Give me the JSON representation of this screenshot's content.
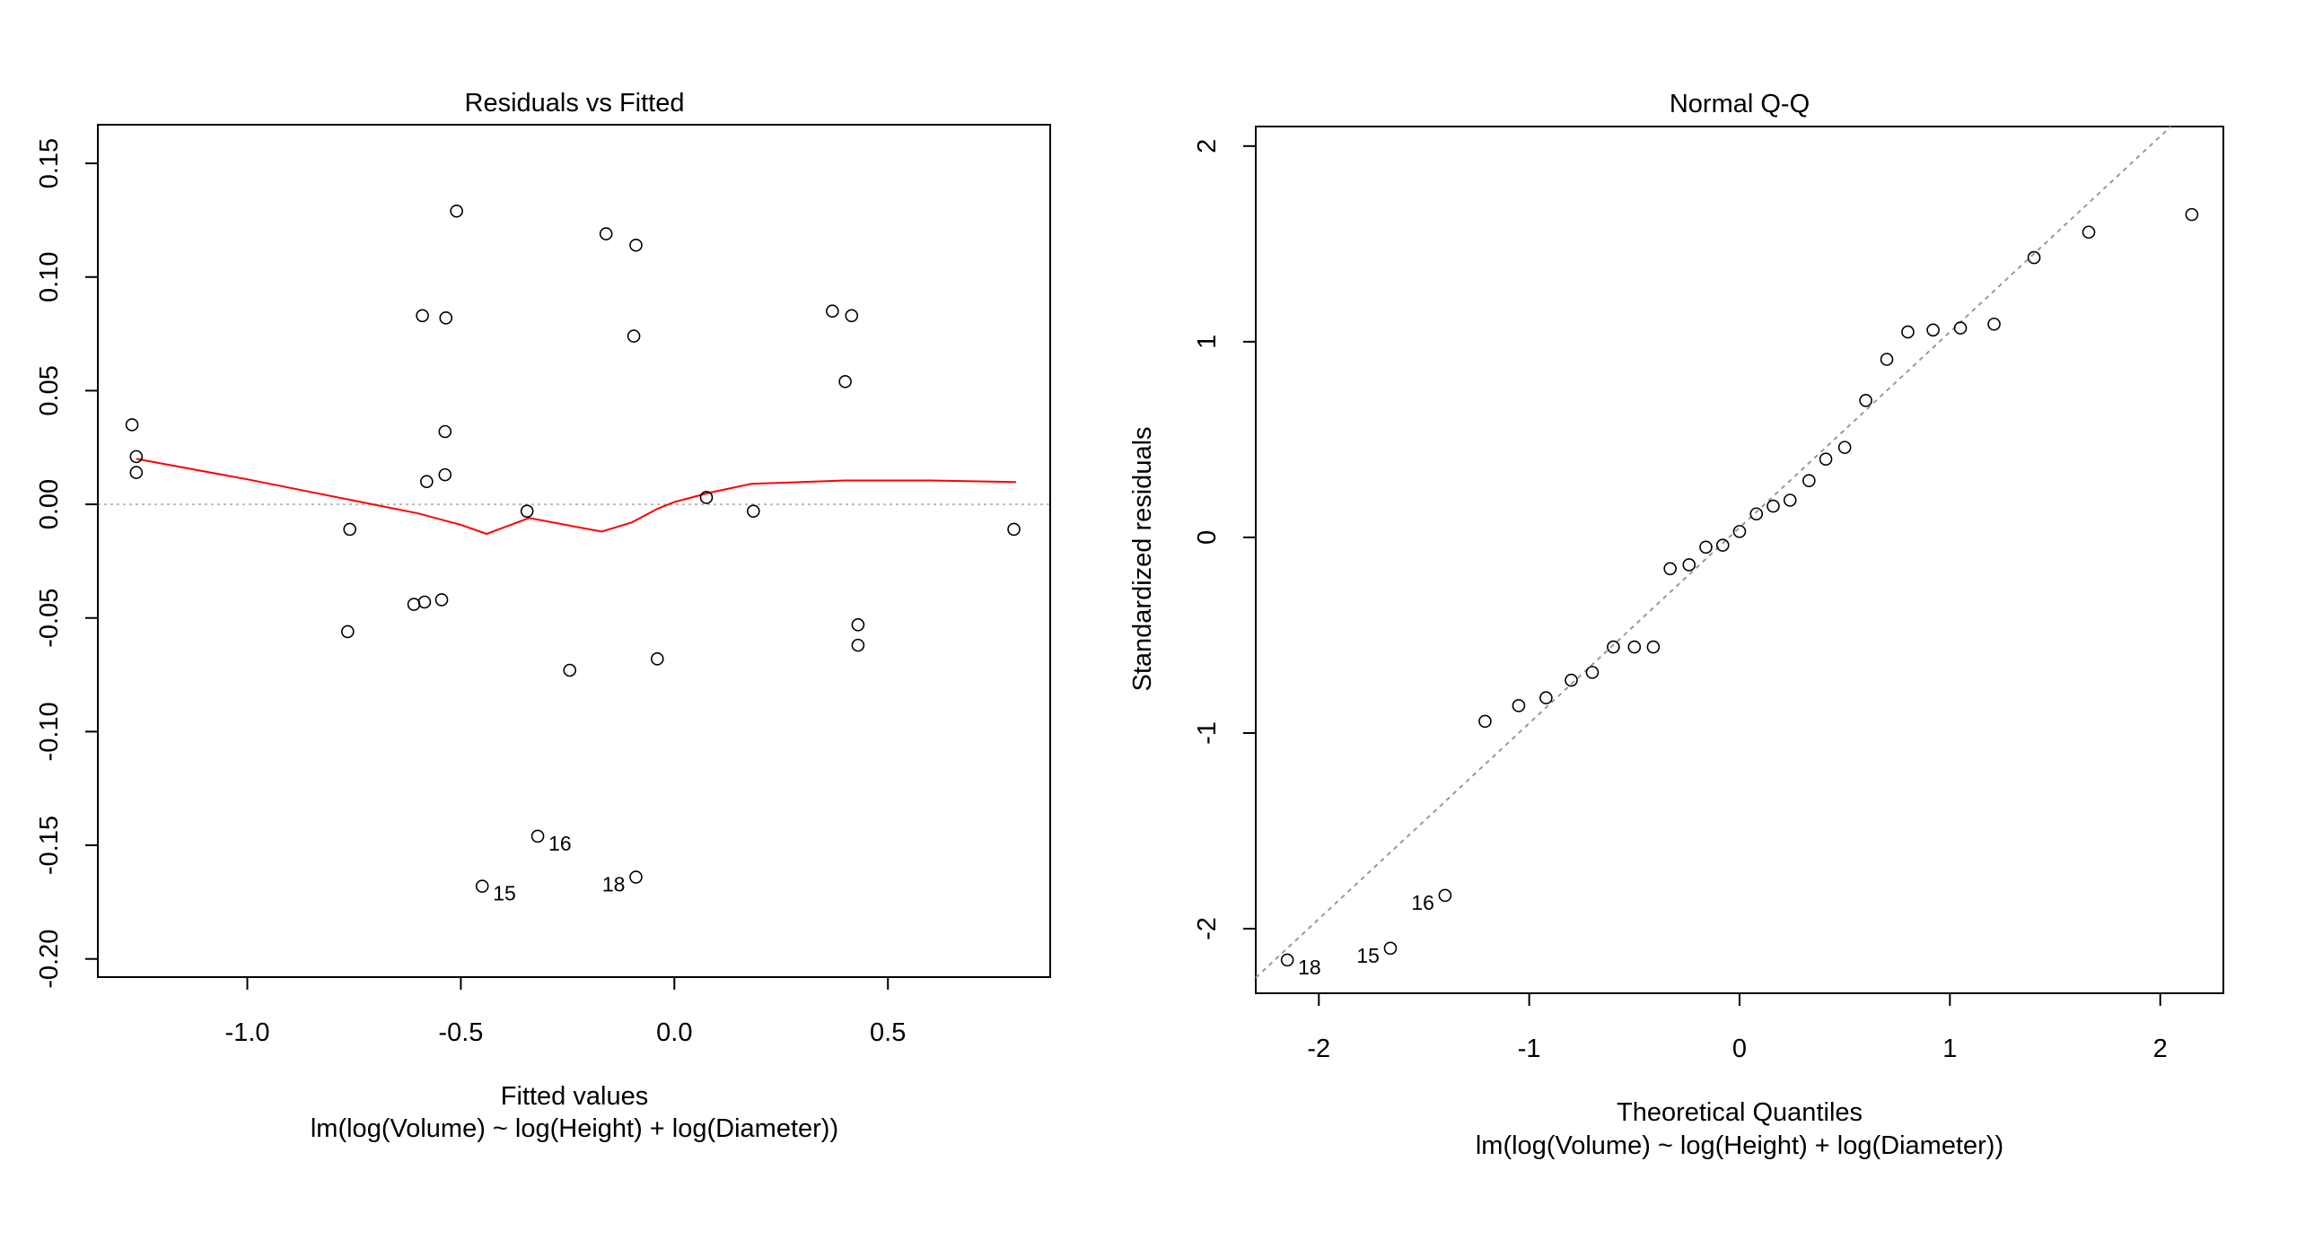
{
  "colors": {
    "points": "#000000",
    "smoother": "#ff0000",
    "reference_line": "#999999",
    "zero_line": "#bbbbbb",
    "axis": "#000000",
    "background": "#ffffff"
  },
  "chart_data": [
    {
      "type": "scatter",
      "title": "Residuals vs Fitted",
      "xlabel": "Fitted values",
      "subtitle": "lm(log(Volume) ~ log(Height) + log(Diameter))",
      "ylabel": "",
      "xlim": [
        -1.35,
        0.88
      ],
      "ylim": [
        -0.208,
        0.167
      ],
      "x_ticks": [
        -1.0,
        -0.5,
        0.0,
        0.5
      ],
      "x_tick_labels": [
        "-1.0",
        "-0.5",
        "0.0",
        "0.5"
      ],
      "y_ticks": [
        -0.2,
        -0.15,
        -0.1,
        -0.05,
        0.0,
        0.05,
        0.1,
        0.15
      ],
      "y_tick_labels": [
        "-0.20",
        "-0.15",
        "-0.10",
        "-0.05",
        "0.00",
        "0.05",
        "0.10",
        "0.15"
      ],
      "reference_line": {
        "type": "horizontal",
        "y": 0,
        "style": "dotted"
      },
      "points": [
        {
          "x": -1.27,
          "y": 0.035
        },
        {
          "x": -1.26,
          "y": 0.021
        },
        {
          "x": -1.26,
          "y": 0.014
        },
        {
          "x": -0.76,
          "y": -0.011
        },
        {
          "x": -0.765,
          "y": -0.056
        },
        {
          "x": -0.61,
          "y": -0.044
        },
        {
          "x": -0.585,
          "y": -0.043
        },
        {
          "x": -0.545,
          "y": -0.042
        },
        {
          "x": -0.59,
          "y": 0.083
        },
        {
          "x": -0.535,
          "y": 0.082
        },
        {
          "x": -0.51,
          "y": 0.129
        },
        {
          "x": -0.58,
          "y": 0.01
        },
        {
          "x": -0.537,
          "y": 0.013
        },
        {
          "x": -0.537,
          "y": 0.032
        },
        {
          "x": -0.345,
          "y": -0.003
        },
        {
          "x": -0.245,
          "y": -0.073
        },
        {
          "x": -0.16,
          "y": 0.119
        },
        {
          "x": -0.09,
          "y": 0.114
        },
        {
          "x": -0.095,
          "y": 0.074
        },
        {
          "x": -0.04,
          "y": -0.068
        },
        {
          "x": 0.075,
          "y": 0.003
        },
        {
          "x": 0.185,
          "y": -0.003
        },
        {
          "x": 0.37,
          "y": 0.085
        },
        {
          "x": 0.415,
          "y": 0.083
        },
        {
          "x": 0.4,
          "y": 0.054
        },
        {
          "x": 0.43,
          "y": -0.053
        },
        {
          "x": 0.43,
          "y": -0.062
        },
        {
          "x": 0.795,
          "y": -0.011
        },
        {
          "x": -0.32,
          "y": -0.146
        },
        {
          "x": -0.45,
          "y": -0.168
        },
        {
          "x": -0.09,
          "y": -0.164
        }
      ],
      "labeled_points": [
        {
          "x": -0.32,
          "y": -0.146,
          "label": "16",
          "side": "right"
        },
        {
          "x": -0.45,
          "y": -0.168,
          "label": "15",
          "side": "right"
        },
        {
          "x": -0.09,
          "y": -0.164,
          "label": "18",
          "side": "left"
        }
      ],
      "smoother": {
        "x": [
          -1.26,
          -1.0,
          -0.76,
          -0.6,
          -0.5,
          -0.44,
          -0.34,
          -0.17,
          -0.1,
          -0.04,
          0.0,
          0.08,
          0.18,
          0.4,
          0.6,
          0.8
        ],
        "y": [
          0.02,
          0.011,
          0.002,
          -0.004,
          -0.009,
          -0.013,
          -0.006,
          -0.012,
          -0.008,
          -0.002,
          0.001,
          0.005,
          0.009,
          0.0105,
          0.0105,
          0.0098
        ]
      }
    },
    {
      "type": "scatter",
      "title": "Normal Q-Q",
      "xlabel": "Theoretical Quantiles",
      "subtitle": "lm(log(Volume) ~ log(Height) + log(Diameter))",
      "ylabel": "Standardized residuals",
      "xlim": [
        -2.3,
        2.3
      ],
      "ylim": [
        -2.33,
        2.1
      ],
      "x_ticks": [
        -2,
        -1,
        0,
        1,
        2
      ],
      "x_tick_labels": [
        "-2",
        "-1",
        "0",
        "1",
        "2"
      ],
      "y_ticks": [
        -2,
        -1,
        0,
        1,
        2
      ],
      "y_tick_labels": [
        "-2",
        "-1",
        "0",
        "1",
        "2"
      ],
      "reference_line": {
        "type": "diagonal",
        "intercept": 0.05,
        "slope": 1.0,
        "style": "dotted"
      },
      "points": [
        {
          "x": -2.15,
          "y": -2.16
        },
        {
          "x": -1.66,
          "y": -2.1
        },
        {
          "x": -1.4,
          "y": -1.83
        },
        {
          "x": -1.21,
          "y": -0.94
        },
        {
          "x": -1.05,
          "y": -0.86
        },
        {
          "x": -0.92,
          "y": -0.82
        },
        {
          "x": -0.8,
          "y": -0.73
        },
        {
          "x": -0.7,
          "y": -0.69
        },
        {
          "x": -0.6,
          "y": -0.56
        },
        {
          "x": -0.5,
          "y": -0.56
        },
        {
          "x": -0.41,
          "y": -0.56
        },
        {
          "x": -0.33,
          "y": -0.16
        },
        {
          "x": -0.24,
          "y": -0.14
        },
        {
          "x": -0.16,
          "y": -0.05
        },
        {
          "x": -0.08,
          "y": -0.04
        },
        {
          "x": 0.0,
          "y": 0.03
        },
        {
          "x": 0.08,
          "y": 0.12
        },
        {
          "x": 0.16,
          "y": 0.16
        },
        {
          "x": 0.24,
          "y": 0.19
        },
        {
          "x": 0.33,
          "y": 0.29
        },
        {
          "x": 0.41,
          "y": 0.4
        },
        {
          "x": 0.5,
          "y": 0.46
        },
        {
          "x": 0.6,
          "y": 0.7
        },
        {
          "x": 0.7,
          "y": 0.91
        },
        {
          "x": 0.8,
          "y": 1.05
        },
        {
          "x": 0.92,
          "y": 1.06
        },
        {
          "x": 1.05,
          "y": 1.07
        },
        {
          "x": 1.21,
          "y": 1.09
        },
        {
          "x": 1.4,
          "y": 1.43
        },
        {
          "x": 1.66,
          "y": 1.56
        },
        {
          "x": 2.15,
          "y": 1.65
        }
      ],
      "labeled_points": [
        {
          "x": -2.15,
          "y": -2.16,
          "label": "18",
          "side": "right"
        },
        {
          "x": -1.66,
          "y": -2.1,
          "label": "15",
          "side": "left"
        },
        {
          "x": -1.4,
          "y": -1.83,
          "label": "16",
          "side": "left"
        }
      ]
    }
  ]
}
